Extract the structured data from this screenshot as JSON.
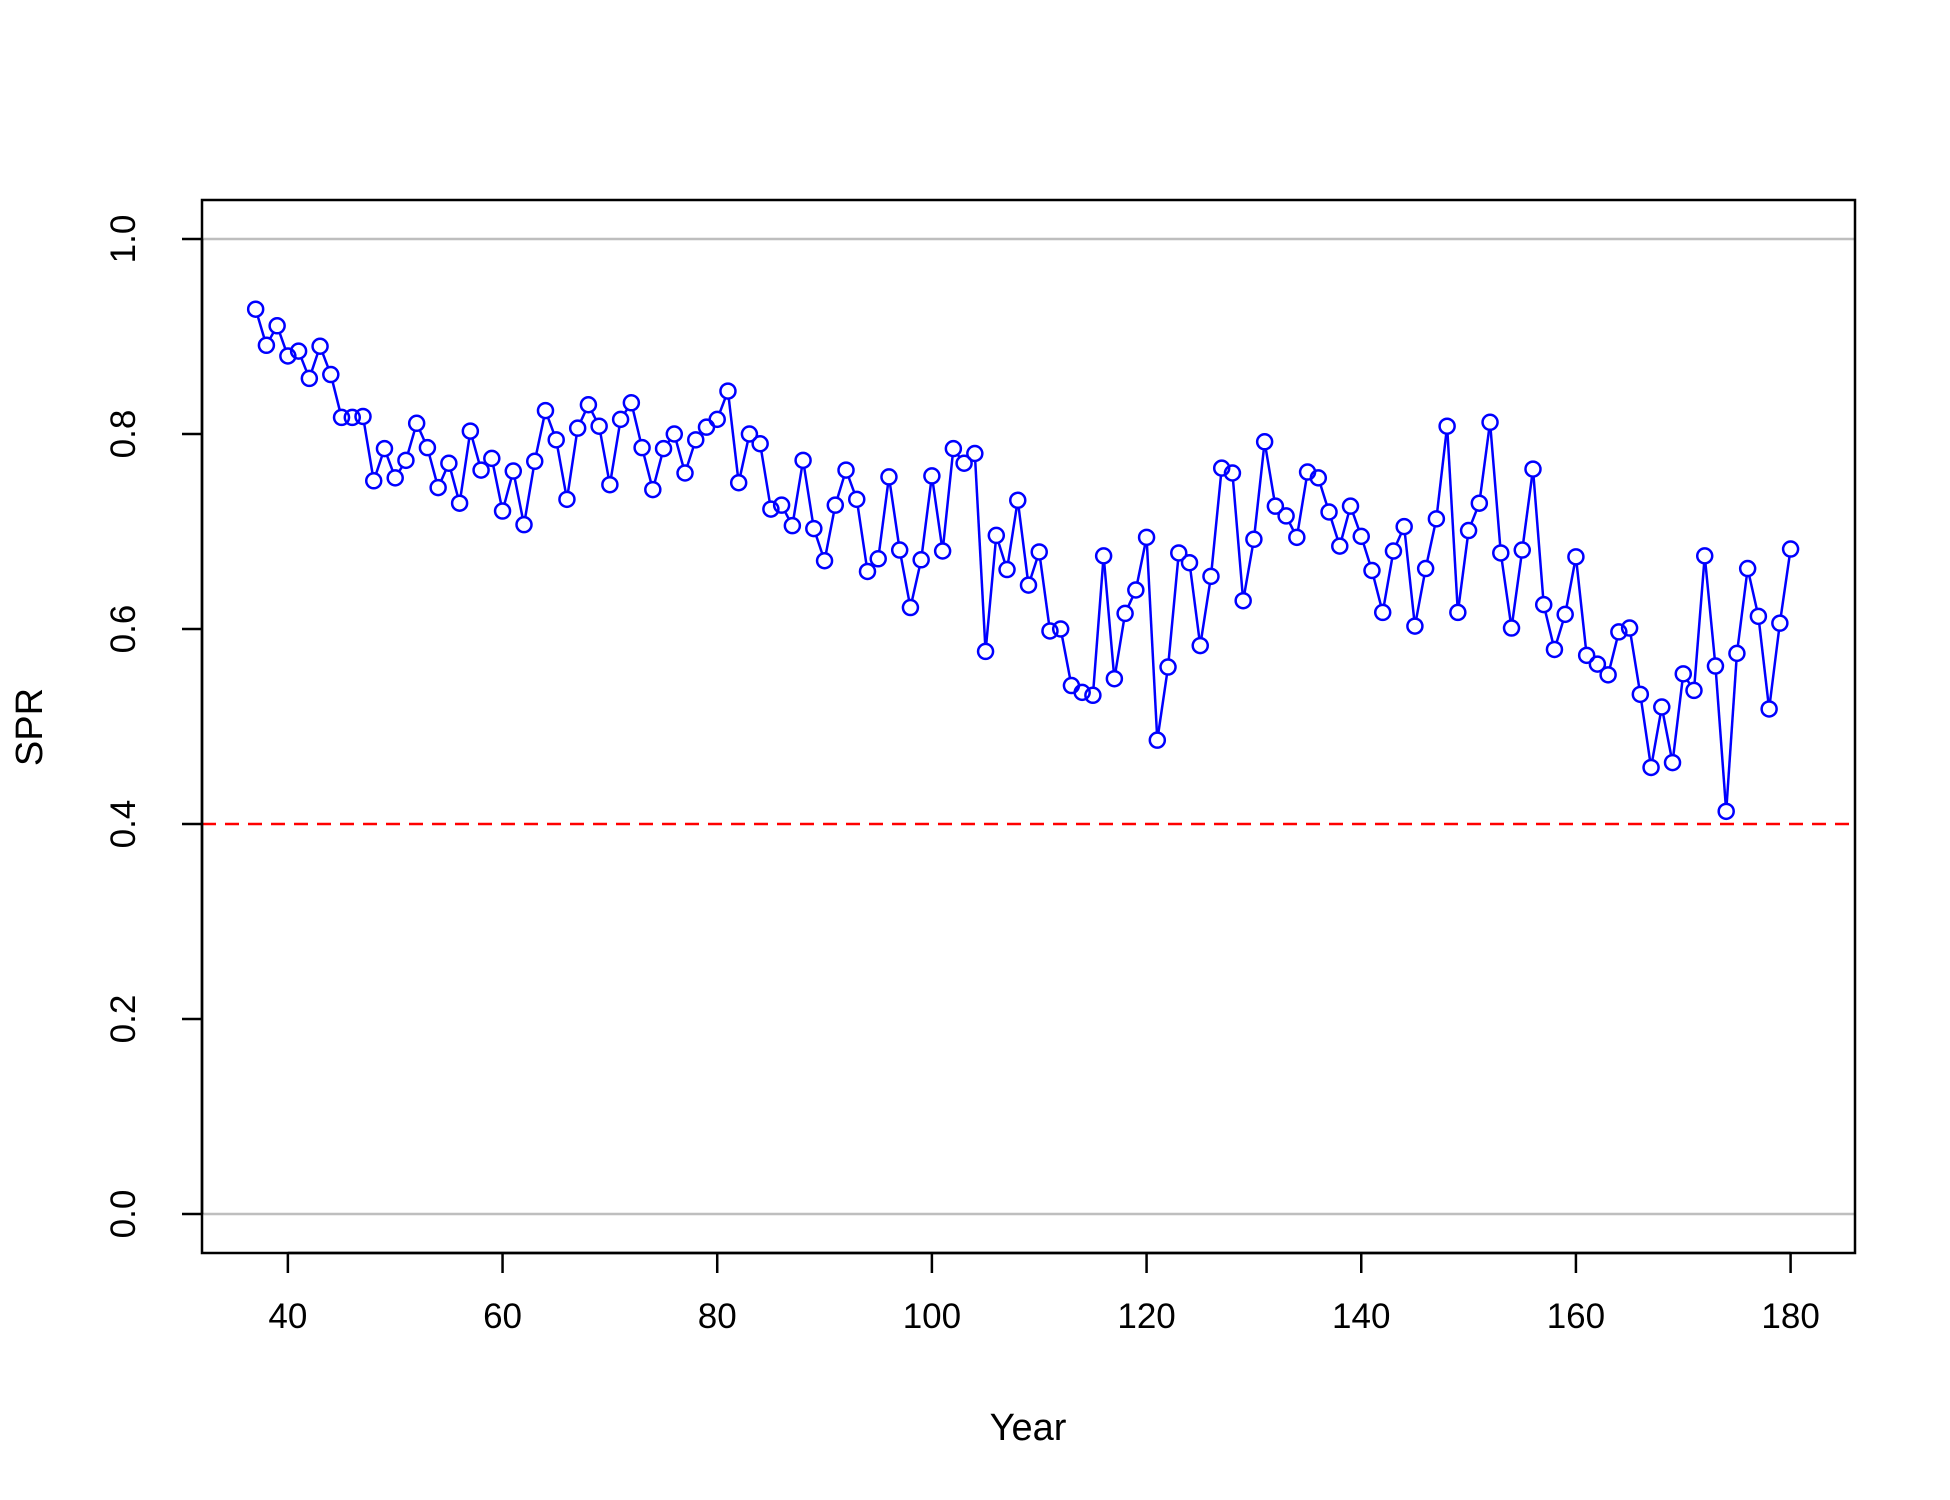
{
  "chart_data": {
    "type": "line",
    "title": "",
    "xlabel": "Year",
    "ylabel": "SPR",
    "xlim": [
      32,
      186
    ],
    "ylim": [
      -0.04,
      1.04
    ],
    "x_ticks": [
      40,
      60,
      80,
      100,
      120,
      140,
      160,
      180
    ],
    "y_ticks": [
      0.0,
      0.2,
      0.4,
      0.6,
      0.8,
      1.0
    ],
    "x_tick_labels": [
      "40",
      "60",
      "80",
      "100",
      "120",
      "140",
      "160",
      "180"
    ],
    "y_tick_labels": [
      "0.0",
      "0.2",
      "0.4",
      "0.6",
      "0.8",
      "1.0"
    ],
    "grid": false,
    "reference_lines": [
      {
        "y": 1.0,
        "color": "#bebebe",
        "style": "solid"
      },
      {
        "y": 0.0,
        "color": "#bebebe",
        "style": "solid"
      },
      {
        "y": 0.4,
        "color": "#ff0000",
        "style": "dashed"
      }
    ],
    "series": [
      {
        "color": "#0000ff",
        "marker": "open-circle",
        "x": [
          37,
          38,
          39,
          40,
          41,
          42,
          43,
          44,
          45,
          46,
          47,
          48,
          49,
          50,
          51,
          52,
          53,
          54,
          55,
          56,
          57,
          58,
          59,
          60,
          61,
          62,
          63,
          64,
          65,
          66,
          67,
          68,
          69,
          70,
          71,
          72,
          73,
          74,
          75,
          76,
          77,
          78,
          79,
          80,
          81,
          82,
          83,
          84,
          85,
          86,
          87,
          88,
          89,
          90,
          91,
          92,
          93,
          94,
          95,
          96,
          97,
          98,
          99,
          100,
          101,
          102,
          103,
          104,
          105,
          106,
          107,
          108,
          109,
          110,
          111,
          112,
          113,
          114,
          115,
          116,
          117,
          118,
          119,
          120,
          121,
          122,
          123,
          124,
          125,
          126,
          127,
          128,
          129,
          130,
          131,
          132,
          133,
          134,
          135,
          136,
          137,
          138,
          139,
          140,
          141,
          142,
          143,
          144,
          145,
          146,
          147,
          148,
          149,
          150,
          151,
          152,
          153,
          154,
          155,
          156,
          157,
          158,
          159,
          160,
          161,
          162,
          163,
          164,
          165,
          166,
          167,
          168,
          169,
          170,
          171,
          172,
          173,
          174,
          175,
          176,
          177,
          178,
          179,
          180
        ],
        "y": [
          0.928,
          0.891,
          0.911,
          0.88,
          0.885,
          0.857,
          0.89,
          0.861,
          0.817,
          0.817,
          0.818,
          0.752,
          0.785,
          0.755,
          0.773,
          0.811,
          0.786,
          0.745,
          0.77,
          0.729,
          0.803,
          0.763,
          0.775,
          0.721,
          0.762,
          0.707,
          0.772,
          0.824,
          0.794,
          0.733,
          0.806,
          0.83,
          0.808,
          0.748,
          0.815,
          0.832,
          0.786,
          0.743,
          0.785,
          0.8,
          0.76,
          0.794,
          0.807,
          0.815,
          0.844,
          0.75,
          0.8,
          0.79,
          0.723,
          0.727,
          0.706,
          0.773,
          0.703,
          0.67,
          0.727,
          0.763,
          0.733,
          0.659,
          0.672,
          0.756,
          0.681,
          0.622,
          0.671,
          0.757,
          0.68,
          0.785,
          0.77,
          0.78,
          0.577,
          0.696,
          0.661,
          0.732,
          0.645,
          0.679,
          0.598,
          0.6,
          0.542,
          0.535,
          0.532,
          0.675,
          0.549,
          0.616,
          0.64,
          0.694,
          0.486,
          0.561,
          0.678,
          0.668,
          0.583,
          0.654,
          0.765,
          0.76,
          0.629,
          0.692,
          0.792,
          0.726,
          0.716,
          0.694,
          0.761,
          0.755,
          0.72,
          0.685,
          0.726,
          0.695,
          0.66,
          0.617,
          0.68,
          0.705,
          0.603,
          0.662,
          0.713,
          0.808,
          0.617,
          0.701,
          0.729,
          0.812,
          0.678,
          0.601,
          0.681,
          0.764,
          0.625,
          0.579,
          0.615,
          0.674,
          0.573,
          0.564,
          0.553,
          0.597,
          0.601,
          0.533,
          0.458,
          0.52,
          0.463,
          0.554,
          0.537,
          0.675,
          0.562,
          0.413,
          0.575,
          0.662,
          0.613,
          0.518,
          0.606,
          0.682
        ]
      }
    ]
  }
}
